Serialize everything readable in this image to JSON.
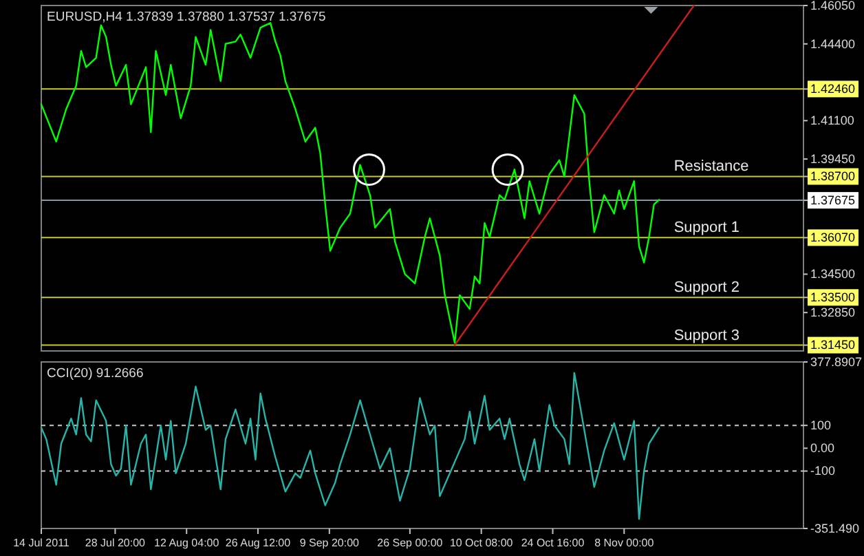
{
  "chart_data": [
    {
      "type": "line",
      "title": "EURUSD,H4 1.37839 1.37880 1.37537 1.37675",
      "xlim": [
        "2011-07-14",
        "2011-12-14"
      ],
      "ylim": [
        1.312,
        1.4605
      ],
      "tick_labels": "y",
      "yticks": [
        {
          "value": 1.4605,
          "label": "1.46050"
        },
        {
          "value": 1.444,
          "label": "1.44400"
        },
        {
          "value": 1.4246,
          "label": "1.42460"
        },
        {
          "value": 1.411,
          "label": "1.41100"
        },
        {
          "value": 1.3945,
          "label": "1.39450"
        },
        {
          "value": 1.387,
          "label": "1.38700"
        },
        1.37675,
        {
          "value": 1.3607,
          "label": "1.36070"
        },
        {
          "value": 1.345,
          "label": "1.34500"
        },
        {
          "value": 1.335,
          "label": "1.33500"
        },
        {
          "value": 1.3285,
          "label": "1.32850"
        },
        {
          "value": 1.3145,
          "label": "1.31450"
        }
      ],
      "ref_lines": [
        {
          "axis": "y",
          "value": 1.4246,
          "label": null,
          "color": "#c8c832"
        },
        {
          "axis": "y",
          "value": 1.387,
          "label": "Resistance",
          "color": "#c8c832"
        },
        {
          "axis": "y",
          "value": 1.37675,
          "label": null,
          "color": "#8c96a0"
        },
        {
          "axis": "y",
          "value": 1.3607,
          "label": "Support 1",
          "color": "#c8c832"
        },
        {
          "axis": "y",
          "value": 1.335,
          "label": "Support 2",
          "color": "#c8c832"
        },
        {
          "axis": "y",
          "value": 1.3145,
          "label": "Support 3",
          "color": "#c8c832"
        }
      ],
      "series": [
        {
          "color": "#00ff00",
          "x": [
            "2011-07-14",
            "2011-07-17",
            "2011-07-19",
            "2011-07-21",
            "2011-07-22",
            "2011-07-23",
            "2011-07-25",
            "2011-07-26",
            "2011-07-27",
            "2011-07-28",
            "2011-07-29",
            "2011-07-31",
            "2011-08-01",
            "2011-08-04",
            "2011-08-05",
            "2011-08-06",
            "2011-08-08",
            "2011-08-09",
            "2011-08-11",
            "2011-08-13",
            "2011-08-14",
            "2011-08-16",
            "2011-08-17",
            "2011-08-19",
            "2011-08-20",
            "2011-08-22",
            "2011-08-23",
            "2011-08-25",
            "2011-08-27",
            "2011-08-29",
            "2011-08-30",
            "2011-08-31",
            "2011-09-01",
            "2011-09-03",
            "2011-09-05",
            "2011-09-07",
            "2011-09-08",
            "2011-09-09",
            "2011-09-10",
            "2011-09-12",
            "2011-09-14",
            "2011-09-16",
            "2011-09-18",
            "2011-09-19",
            "2011-09-22",
            "2011-09-23",
            "2011-09-25",
            "2011-09-27",
            "2011-09-29",
            "2011-09-30",
            "2011-10-02",
            "2011-10-03",
            "2011-10-05",
            "2011-10-06",
            "2011-10-08",
            "2011-10-09",
            "2011-10-10",
            "2011-10-11",
            "2011-10-12",
            "2011-10-14",
            "2011-10-15",
            "2011-10-17",
            "2011-10-19",
            "2011-10-20",
            "2011-10-22",
            "2011-10-24",
            "2011-10-26",
            "2011-10-27",
            "2011-10-29",
            "2011-10-31",
            "2011-11-01",
            "2011-11-02",
            "2011-11-04",
            "2011-11-06",
            "2011-11-07",
            "2011-11-08",
            "2011-11-10",
            "2011-11-11",
            "2011-11-12",
            "2011-11-13",
            "2011-11-14",
            "2011-11-15"
          ],
          "values": [
            1.418,
            1.402,
            1.416,
            1.426,
            1.441,
            1.434,
            1.438,
            1.452,
            1.447,
            1.435,
            1.426,
            1.435,
            1.418,
            1.434,
            1.406,
            1.441,
            1.422,
            1.435,
            1.412,
            1.426,
            1.447,
            1.435,
            1.45,
            1.428,
            1.444,
            1.445,
            1.448,
            1.438,
            1.451,
            1.453,
            1.445,
            1.439,
            1.428,
            1.416,
            1.402,
            1.408,
            1.397,
            1.375,
            1.355,
            1.365,
            1.371,
            1.392,
            1.379,
            1.365,
            1.373,
            1.359,
            1.345,
            1.341,
            1.361,
            1.369,
            1.353,
            1.336,
            1.3155,
            1.336,
            1.33,
            1.344,
            1.341,
            1.367,
            1.361,
            1.379,
            1.377,
            1.39,
            1.369,
            1.385,
            1.371,
            1.388,
            1.394,
            1.387,
            1.422,
            1.414,
            1.385,
            1.363,
            1.379,
            1.371,
            1.381,
            1.373,
            1.385,
            1.357,
            1.35,
            1.361,
            1.375,
            1.377
          ]
        },
        {
          "type": "line",
          "color": "#c81e1e",
          "x": [
            "2011-10-05",
            "2011-11-22"
          ],
          "values": [
            1.3145,
            1.4605
          ]
        }
      ]
    },
    {
      "type": "line",
      "title": "CCI(20) 91.2666",
      "xlim": [
        "2011-07-14",
        "2011-12-14"
      ],
      "ylim": [
        -351.49,
        377.8907
      ],
      "xticks": [
        {
          "value": "2011-07-14",
          "label": "14 Jul 2011"
        },
        {
          "value": "2011-07-28T20:00",
          "label": "28 Jul 20:00"
        },
        {
          "value": "2011-08-12T04:00",
          "label": "12 Aug 04:00"
        },
        {
          "value": "2011-08-26T12:00",
          "label": "26 Aug 12:00"
        },
        {
          "value": "2011-09-09T20:00",
          "label": "9 Sep 20:00"
        },
        {
          "value": "2011-09-26T00:00",
          "label": "26 Sep 00:00"
        },
        {
          "value": "2011-10-10T08:00",
          "label": "10 Oct 08:00"
        },
        {
          "value": "2011-10-24T16:00",
          "label": "24 Oct 16:00"
        },
        {
          "value": "2011-11-08T00:00",
          "label": "8 Nov 00:00"
        }
      ],
      "yticks": [
        377.8907,
        100,
        {
          "value": 0,
          "label": "0.00"
        },
        -100,
        {
          "value": -351.49,
          "label": "-351.490"
        }
      ],
      "ref_lines": [
        {
          "axis": "y",
          "value": 100,
          "label": null,
          "color": "#c8c8c8",
          "line_style": "dashed"
        },
        {
          "axis": "y",
          "value": -100,
          "label": null,
          "color": "#c8c8c8",
          "line_style": "dashed"
        }
      ],
      "series": [
        {
          "color": "#26b5a8",
          "x": [
            "2011-07-14",
            "2011-07-15",
            "2011-07-17",
            "2011-07-18",
            "2011-07-20",
            "2011-07-21",
            "2011-07-22",
            "2011-07-23",
            "2011-07-24",
            "2011-07-25",
            "2011-07-27",
            "2011-07-28",
            "2011-07-29",
            "2011-07-30",
            "2011-07-31",
            "2011-08-01",
            "2011-08-03",
            "2011-08-04",
            "2011-08-05",
            "2011-08-07",
            "2011-08-08",
            "2011-08-09",
            "2011-08-10",
            "2011-08-12",
            "2011-08-14",
            "2011-08-16",
            "2011-08-17",
            "2011-08-19",
            "2011-08-20",
            "2011-08-22",
            "2011-08-24",
            "2011-08-25",
            "2011-08-26",
            "2011-08-27",
            "2011-08-28",
            "2011-08-30",
            "2011-09-01",
            "2011-09-03",
            "2011-09-04",
            "2011-09-06",
            "2011-09-07",
            "2011-09-09",
            "2011-09-11",
            "2011-09-12",
            "2011-09-14",
            "2011-09-16",
            "2011-09-18",
            "2011-09-20",
            "2011-09-22",
            "2011-09-24",
            "2011-09-26",
            "2011-09-28",
            "2011-09-30",
            "2011-10-01",
            "2011-10-02",
            "2011-10-04",
            "2011-10-07",
            "2011-10-08",
            "2011-10-09",
            "2011-10-11",
            "2011-10-12",
            "2011-10-14",
            "2011-10-15",
            "2011-10-16",
            "2011-10-18",
            "2011-10-19",
            "2011-10-21",
            "2011-10-22",
            "2011-10-24",
            "2011-10-25",
            "2011-10-27",
            "2011-10-28",
            "2011-10-29",
            "2011-10-31",
            "2011-11-02",
            "2011-11-04",
            "2011-11-06",
            "2011-11-08",
            "2011-11-10",
            "2011-11-11",
            "2011-11-12",
            "2011-11-13",
            "2011-11-15"
          ],
          "values": [
            90,
            40,
            -160,
            20,
            130,
            60,
            220,
            60,
            30,
            210,
            120,
            -70,
            -120,
            -90,
            100,
            -160,
            20,
            60,
            -180,
            100,
            -50,
            120,
            -110,
            20,
            270,
            80,
            100,
            -180,
            40,
            170,
            20,
            130,
            -50,
            240,
            130,
            -40,
            -190,
            -110,
            -130,
            -10,
            -110,
            -250,
            -150,
            -70,
            60,
            210,
            60,
            -90,
            0,
            -230,
            -90,
            220,
            60,
            100,
            -210,
            -110,
            40,
            160,
            20,
            230,
            80,
            130,
            40,
            130,
            -70,
            -140,
            40,
            -100,
            190,
            100,
            40,
            -70,
            330,
            80,
            -170,
            -10,
            110,
            -50,
            120,
            -310,
            -100,
            20,
            90
          ]
        }
      ]
    }
  ]
}
